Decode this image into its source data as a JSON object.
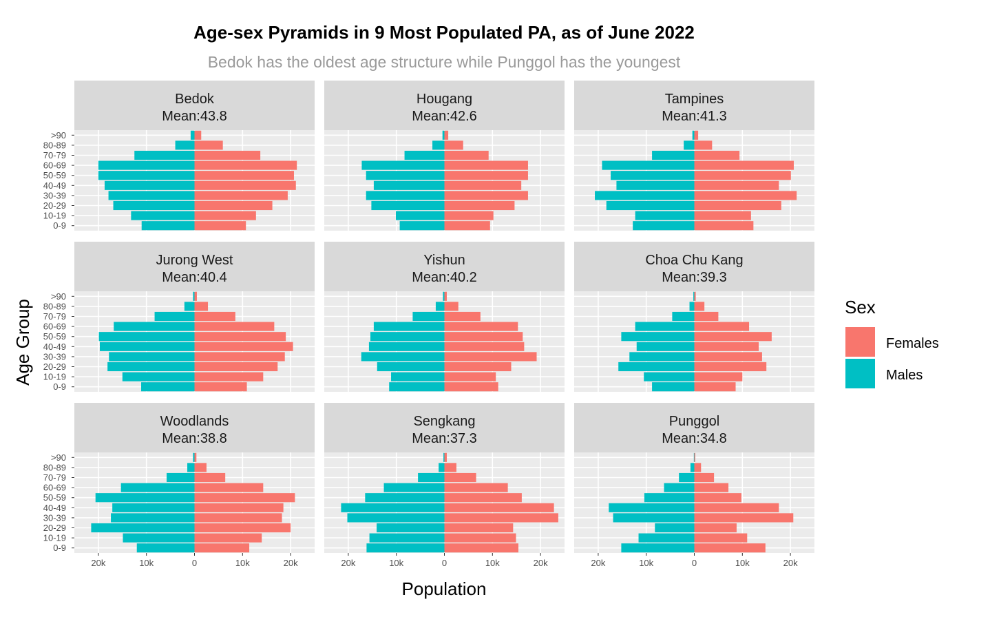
{
  "chart_data": {
    "type": "bar",
    "orientation": "horizontal-pyramid",
    "title": "Age-sex Pyramids in 9 Most Populated PA, as of June 2022",
    "subtitle": "Bedok has the oldest age structure while Punggol has the youngest",
    "xlabel": "Population",
    "ylabel": "Age Group",
    "xlim": [
      -25000,
      25000
    ],
    "x_ticks": [
      -20000,
      -10000,
      0,
      10000,
      20000
    ],
    "x_tick_labels": [
      "20k",
      "10k",
      "0",
      "10k",
      "20k"
    ],
    "categories": [
      "0-9",
      "10-19",
      "20-29",
      "30-39",
      "40-49",
      "50-59",
      "60-69",
      "70-79",
      "80-89",
      ">90"
    ],
    "legend": {
      "title": "Sex",
      "position": "right",
      "entries": [
        {
          "label": "Females",
          "color": "#F8766D"
        },
        {
          "label": "Males",
          "color": "#00BFC4"
        }
      ]
    },
    "grid": true,
    "facets": [
      {
        "name": "Bedok",
        "mean_label": "Mean:43.8",
        "females": [
          10700,
          12800,
          16200,
          19400,
          21100,
          20700,
          21300,
          13700,
          5900,
          1400
        ],
        "males": [
          11000,
          13200,
          16900,
          17900,
          18700,
          20000,
          20000,
          12500,
          4000,
          800
        ]
      },
      {
        "name": "Hougang",
        "mean_label": "Mean:42.6",
        "females": [
          9500,
          10200,
          14600,
          17400,
          16000,
          17400,
          17400,
          9200,
          3900,
          800
        ],
        "males": [
          9300,
          10100,
          15200,
          16300,
          14700,
          16300,
          17200,
          8300,
          2500,
          400
        ]
      },
      {
        "name": "Tampines",
        "mean_label": "Mean:41.3",
        "females": [
          12300,
          11800,
          18100,
          21300,
          17600,
          20100,
          20700,
          9400,
          3700,
          800
        ],
        "males": [
          12800,
          12300,
          18300,
          20700,
          16200,
          17400,
          19200,
          8800,
          2200,
          400
        ]
      },
      {
        "name": "Jurong West",
        "mean_label": "Mean:40.4",
        "females": [
          10900,
          14300,
          17300,
          18800,
          20500,
          19000,
          16600,
          8500,
          2800,
          500
        ],
        "males": [
          11100,
          15000,
          18100,
          17800,
          19700,
          19900,
          16800,
          8300,
          2100,
          300
        ]
      },
      {
        "name": "Yishun",
        "mean_label": "Mean:40.2",
        "females": [
          11200,
          10700,
          13900,
          19200,
          16600,
          16300,
          15300,
          7500,
          2900,
          500
        ],
        "males": [
          11500,
          11100,
          14000,
          17300,
          15700,
          15400,
          14700,
          6600,
          1800,
          300
        ]
      },
      {
        "name": "Choa Chu Kang",
        "mean_label": "Mean:39.3",
        "females": [
          8600,
          10000,
          15000,
          14100,
          13400,
          16100,
          11400,
          5000,
          2100,
          300
        ],
        "males": [
          8800,
          10500,
          15800,
          13500,
          12000,
          15200,
          12300,
          4600,
          1000,
          200
        ]
      },
      {
        "name": "Woodlands",
        "mean_label": "Mean:38.8",
        "females": [
          11400,
          14000,
          20000,
          18200,
          18500,
          20900,
          14300,
          6400,
          2500,
          400
        ],
        "males": [
          12000,
          14900,
          21500,
          17400,
          17100,
          20600,
          15300,
          5800,
          1500,
          300
        ]
      },
      {
        "name": "Sengkang",
        "mean_label": "Mean:37.3",
        "females": [
          15400,
          14900,
          14300,
          23700,
          22800,
          16100,
          13200,
          6600,
          2500,
          500
        ],
        "males": [
          16200,
          15600,
          14100,
          20200,
          21500,
          16500,
          12600,
          5500,
          1200,
          200
        ]
      },
      {
        "name": "Punggol",
        "mean_label": "Mean:34.8",
        "females": [
          14800,
          11000,
          8800,
          20600,
          17600,
          9800,
          7100,
          4100,
          1400,
          200
        ],
        "males": [
          15200,
          11600,
          8200,
          16900,
          17800,
          10400,
          6300,
          3200,
          800,
          100
        ]
      }
    ]
  }
}
